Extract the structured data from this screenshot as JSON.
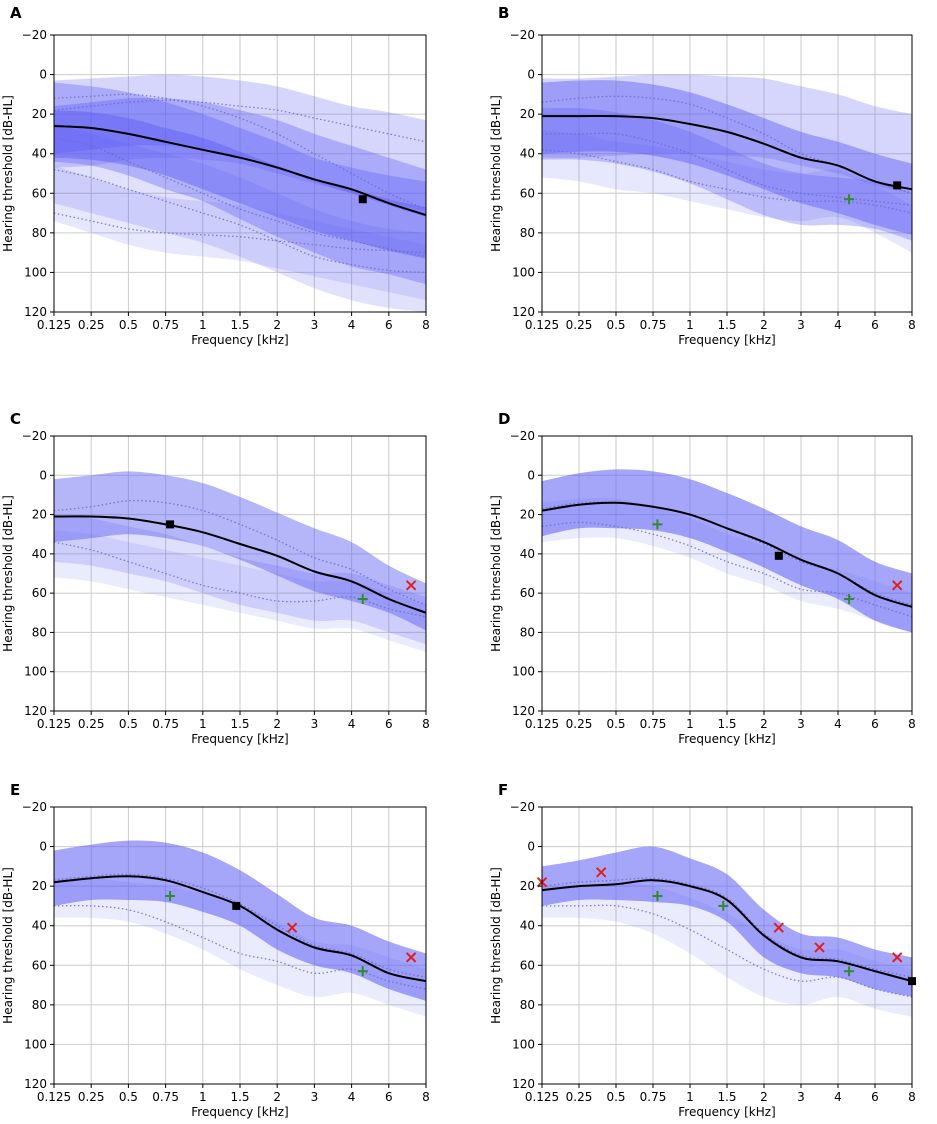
{
  "figure": {
    "colors": {
      "band": "#5b5bf5",
      "mean": "#000000",
      "plus": "#2e8b2e",
      "cross": "#e02020",
      "grid": "#cccccc"
    }
  },
  "chart_data": [
    {
      "panel": "A",
      "type": "line",
      "xlabel": "Frequency [kHz]",
      "ylabel": "Hearing threshold [dB-HL]",
      "x_ticks": [
        "0.125",
        "0.25",
        "0.5",
        "0.75",
        "1",
        "1.5",
        "2",
        "3",
        "4",
        "6",
        "8"
      ],
      "y_ticks": [
        -20,
        0,
        20,
        40,
        60,
        80,
        100,
        120
      ],
      "ylim": [
        120,
        -20
      ],
      "mean": [
        26,
        27,
        30,
        34,
        38,
        42,
        47,
        53,
        58,
        65,
        71
      ],
      "bands": [
        {
          "center": [
            24,
            26,
            30,
            36,
            42,
            50,
            58,
            66,
            72,
            76,
            80
          ],
          "half": [
            20,
            20,
            21,
            22,
            22,
            23,
            24,
            24,
            25,
            25,
            26
          ],
          "opacity": 0.35
        },
        {
          "center": [
            30,
            31,
            34,
            39,
            45,
            52,
            59,
            66,
            71,
            76,
            80
          ],
          "half": [
            12,
            12,
            12,
            12,
            13,
            13,
            13,
            13,
            13,
            13,
            13
          ],
          "opacity": 0.45
        },
        {
          "center": [
            25,
            24,
            22,
            21,
            22,
            24,
            28,
            33,
            38,
            42,
            46
          ],
          "half": [
            22,
            22,
            21,
            21,
            21,
            21,
            22,
            22,
            22,
            23,
            23
          ],
          "opacity": 0.25
        },
        {
          "center": [
            45,
            50,
            55,
            60,
            65,
            72,
            80,
            88,
            94,
            98,
            100
          ],
          "half": [
            20,
            20,
            20,
            20,
            20,
            20,
            20,
            20,
            20,
            20,
            20
          ],
          "opacity": 0.18
        },
        {
          "center": [
            28,
            26,
            24,
            24,
            26,
            30,
            35,
            42,
            48,
            54,
            60
          ],
          "half": [
            12,
            12,
            12,
            12,
            12,
            12,
            12,
            12,
            12,
            12,
            12
          ],
          "opacity": 0.35
        },
        {
          "center": [
            60,
            66,
            72,
            76,
            78,
            80,
            84,
            88,
            92,
            96,
            100
          ],
          "half": [
            14,
            14,
            14,
            14,
            14,
            14,
            14,
            14,
            14,
            14,
            14
          ],
          "opacity": 0.15
        }
      ],
      "dotted": [
        [
          12,
          11,
          10,
          12,
          16,
          22,
          30,
          40,
          50,
          60,
          68
        ],
        [
          48,
          52,
          58,
          64,
          70,
          76,
          84,
          92,
          96,
          99,
          100
        ],
        [
          32,
          36,
          44,
          52,
          60,
          68,
          74,
          80,
          84,
          88,
          92
        ],
        [
          70,
          74,
          78,
          80,
          81,
          82,
          84,
          86,
          88,
          89,
          90
        ],
        [
          18,
          16,
          14,
          13,
          14,
          16,
          18,
          22,
          26,
          30,
          34
        ]
      ],
      "squares": [
        {
          "x": 4.6,
          "y": 63
        }
      ],
      "plus": [],
      "crosses": []
    },
    {
      "panel": "B",
      "type": "line",
      "xlabel": "Frequency [kHz]",
      "ylabel": "Hearing threshold [dB-HL]",
      "x_ticks": [
        "0.125",
        "0.25",
        "0.5",
        "0.75",
        "1",
        "1.5",
        "2",
        "3",
        "4",
        "6",
        "8"
      ],
      "y_ticks": [
        -20,
        0,
        20,
        40,
        60,
        80,
        100,
        120
      ],
      "ylim": [
        120,
        -20
      ],
      "mean": [
        21,
        21,
        21,
        22,
        25,
        29,
        35,
        42,
        46,
        54,
        58
      ],
      "bands": [
        {
          "center": [
            22,
            21,
            21,
            23,
            27,
            33,
            40,
            47,
            52,
            58,
            63
          ],
          "half": [
            18,
            18,
            18,
            18,
            18,
            18,
            18,
            18,
            18,
            18,
            18
          ],
          "opacity": 0.45
        },
        {
          "center": [
            30,
            30,
            32,
            36,
            42,
            50,
            58,
            63,
            64,
            66,
            72
          ],
          "half": [
            13,
            13,
            13,
            13,
            13,
            13,
            13,
            13,
            12,
            12,
            12
          ],
          "opacity": 0.3
        },
        {
          "center": [
            40,
            42,
            46,
            48,
            52,
            56,
            60,
            62,
            60,
            68,
            78
          ],
          "half": [
            12,
            12,
            12,
            12,
            12,
            12,
            12,
            12,
            12,
            12,
            12
          ],
          "opacity": 0.15
        },
        {
          "center": [
            22,
            22,
            21,
            20,
            20,
            21,
            22,
            26,
            30,
            36,
            40
          ],
          "half": [
            20,
            20,
            20,
            20,
            20,
            20,
            20,
            20,
            20,
            20,
            20
          ],
          "opacity": 0.25
        }
      ],
      "dotted": [
        [
          14,
          12,
          11,
          12,
          15,
          22,
          30,
          40,
          46,
          54,
          60
        ],
        [
          38,
          40,
          44,
          48,
          54,
          58,
          62,
          64,
          64,
          66,
          70
        ],
        [
          30,
          30,
          30,
          34,
          40,
          48,
          56,
          60,
          62,
          64,
          66
        ]
      ],
      "squares": [
        {
          "x": 7.2,
          "y": 56
        }
      ],
      "plus": [
        {
          "x": 4.6,
          "y": 63
        }
      ],
      "crosses": []
    },
    {
      "panel": "C",
      "type": "line",
      "xlabel": "Frequency [kHz]",
      "ylabel": "Hearing threshold [dB-HL]",
      "x_ticks": [
        "0.125",
        "0.25",
        "0.5",
        "0.75",
        "1",
        "1.5",
        "2",
        "3",
        "4",
        "6",
        "8"
      ],
      "y_ticks": [
        -20,
        0,
        20,
        40,
        60,
        80,
        100,
        120
      ],
      "ylim": [
        120,
        -20
      ],
      "mean": [
        21,
        21,
        22,
        25,
        29,
        35,
        41,
        49,
        54,
        63,
        70
      ],
      "bands": [
        {
          "center": [
            18,
            16,
            14,
            16,
            20,
            27,
            35,
            43,
            49,
            58,
            67
          ],
          "half": [
            16,
            16,
            16,
            16,
            16,
            16,
            16,
            16,
            15,
            12,
            12
          ],
          "opacity": 0.45
        },
        {
          "center": [
            32,
            34,
            38,
            42,
            48,
            54,
            58,
            62,
            62,
            68,
            74
          ],
          "half": [
            12,
            12,
            12,
            12,
            12,
            12,
            12,
            12,
            12,
            12,
            12
          ],
          "opacity": 0.2
        },
        {
          "center": [
            40,
            42,
            46,
            50,
            54,
            58,
            62,
            66,
            66,
            72,
            78
          ],
          "half": [
            12,
            12,
            12,
            12,
            12,
            12,
            12,
            12,
            12,
            12,
            12
          ],
          "opacity": 0.12
        }
      ],
      "dotted": [
        [
          18,
          16,
          13,
          14,
          18,
          25,
          33,
          42,
          48,
          58,
          66
        ],
        [
          34,
          38,
          44,
          50,
          56,
          60,
          64,
          64,
          62,
          68,
          72
        ]
      ],
      "squares": [
        {
          "x": 0.78,
          "y": 25
        }
      ],
      "plus": [
        {
          "x": 4.6,
          "y": 63
        }
      ],
      "crosses": [
        {
          "x": 7.2,
          "y": 56
        }
      ]
    },
    {
      "panel": "D",
      "type": "line",
      "xlabel": "Frequency [kHz]",
      "ylabel": "Hearing threshold [dB-HL]",
      "x_ticks": [
        "0.125",
        "0.25",
        "0.5",
        "0.75",
        "1",
        "1.5",
        "2",
        "3",
        "4",
        "6",
        "8"
      ],
      "y_ticks": [
        -20,
        0,
        20,
        40,
        60,
        80,
        100,
        120
      ],
      "ylim": [
        120,
        -20
      ],
      "mean": [
        18,
        15,
        14,
        16,
        20,
        27,
        34,
        43,
        50,
        61,
        67
      ],
      "bands": [
        {
          "center": [
            17,
            13,
            12,
            13,
            17,
            24,
            32,
            41,
            48,
            59,
            65
          ],
          "half": [
            14,
            14,
            15,
            15,
            15,
            15,
            15,
            15,
            15,
            15,
            15
          ],
          "opacity": 0.55
        },
        {
          "center": [
            24,
            22,
            22,
            26,
            32,
            40,
            46,
            54,
            58,
            64,
            70
          ],
          "half": [
            10,
            10,
            10,
            10,
            10,
            10,
            10,
            10,
            10,
            10,
            10
          ],
          "opacity": 0.12
        }
      ],
      "dotted": [
        [
          17,
          14,
          14,
          16,
          20,
          27,
          35,
          44,
          50,
          60,
          66
        ],
        [
          26,
          24,
          26,
          30,
          36,
          44,
          50,
          58,
          60,
          66,
          72
        ]
      ],
      "squares": [
        {
          "x": 2.4,
          "y": 41
        }
      ],
      "plus": [
        {
          "x": 0.78,
          "y": 25
        },
        {
          "x": 4.6,
          "y": 63
        }
      ],
      "crosses": [
        {
          "x": 7.2,
          "y": 56
        }
      ]
    },
    {
      "panel": "E",
      "type": "line",
      "xlabel": "Frequency [kHz]",
      "ylabel": "Hearing threshold [dB-HL]",
      "x_ticks": [
        "0.125",
        "0.25",
        "0.5",
        "0.75",
        "1",
        "1.5",
        "2",
        "3",
        "4",
        "6",
        "8"
      ],
      "y_ticks": [
        -20,
        0,
        20,
        40,
        60,
        80,
        100,
        120
      ],
      "ylim": [
        120,
        -20
      ],
      "mean": [
        18,
        16,
        15,
        17,
        23,
        30,
        42,
        51,
        55,
        64,
        68
      ],
      "bands": [
        {
          "center": [
            16,
            13,
            12,
            13,
            18,
            26,
            38,
            48,
            52,
            60,
            66
          ],
          "half": [
            14,
            14,
            15,
            15,
            15,
            14,
            14,
            12,
            12,
            12,
            12
          ],
          "opacity": 0.55
        },
        {
          "center": [
            26,
            26,
            28,
            32,
            38,
            46,
            54,
            62,
            62,
            68,
            74
          ],
          "half": [
            10,
            10,
            10,
            12,
            14,
            16,
            16,
            14,
            12,
            12,
            12
          ],
          "opacity": 0.12
        }
      ],
      "dotted": [
        [
          17,
          15,
          14,
          16,
          21,
          29,
          40,
          50,
          54,
          62,
          66
        ],
        [
          30,
          30,
          32,
          38,
          46,
          54,
          58,
          64,
          62,
          68,
          72
        ]
      ],
      "squares": [
        {
          "x": 1.45,
          "y": 30
        }
      ],
      "plus": [
        {
          "x": 0.78,
          "y": 25
        },
        {
          "x": 4.6,
          "y": 63
        }
      ],
      "crosses": [
        {
          "x": 2.4,
          "y": 41
        },
        {
          "x": 7.2,
          "y": 56
        }
      ]
    },
    {
      "panel": "F",
      "type": "line",
      "xlabel": "Frequency [kHz]",
      "ylabel": "Hearing threshold [dB-HL]",
      "x_ticks": [
        "0.125",
        "0.25",
        "0.5",
        "0.75",
        "1",
        "1.5",
        "2",
        "3",
        "4",
        "6",
        "8"
      ],
      "y_ticks": [
        -20,
        0,
        20,
        40,
        60,
        80,
        100,
        120
      ],
      "ylim": [
        120,
        -20
      ],
      "mean": [
        22,
        20,
        19,
        17,
        20,
        27,
        45,
        56,
        58,
        63,
        68
      ],
      "bands": [
        {
          "center": [
            20,
            17,
            15,
            14,
            18,
            26,
            44,
            54,
            56,
            62,
            66
          ],
          "half": [
            10,
            10,
            12,
            14,
            12,
            12,
            12,
            10,
            10,
            10,
            10
          ],
          "opacity": 0.55
        },
        {
          "center": [
            28,
            28,
            28,
            32,
            40,
            50,
            60,
            66,
            64,
            70,
            74
          ],
          "half": [
            8,
            8,
            10,
            12,
            14,
            16,
            16,
            14,
            12,
            12,
            12
          ],
          "opacity": 0.12
        }
      ],
      "dotted": [
        [
          20,
          18,
          17,
          16,
          19,
          26,
          44,
          55,
          57,
          62,
          66
        ],
        [
          30,
          30,
          30,
          34,
          42,
          52,
          62,
          68,
          66,
          72,
          76
        ]
      ],
      "squares": [
        {
          "x": 8,
          "y": 68
        }
      ],
      "plus": [
        {
          "x": 0.78,
          "y": 25
        },
        {
          "x": 1.45,
          "y": 30
        },
        {
          "x": 4.6,
          "y": 63
        }
      ],
      "crosses": [
        {
          "x": 0.125,
          "y": 18
        },
        {
          "x": 0.4,
          "y": 13
        },
        {
          "x": 2.4,
          "y": 41
        },
        {
          "x": 3.5,
          "y": 51
        },
        {
          "x": 7.2,
          "y": 56
        }
      ]
    }
  ]
}
